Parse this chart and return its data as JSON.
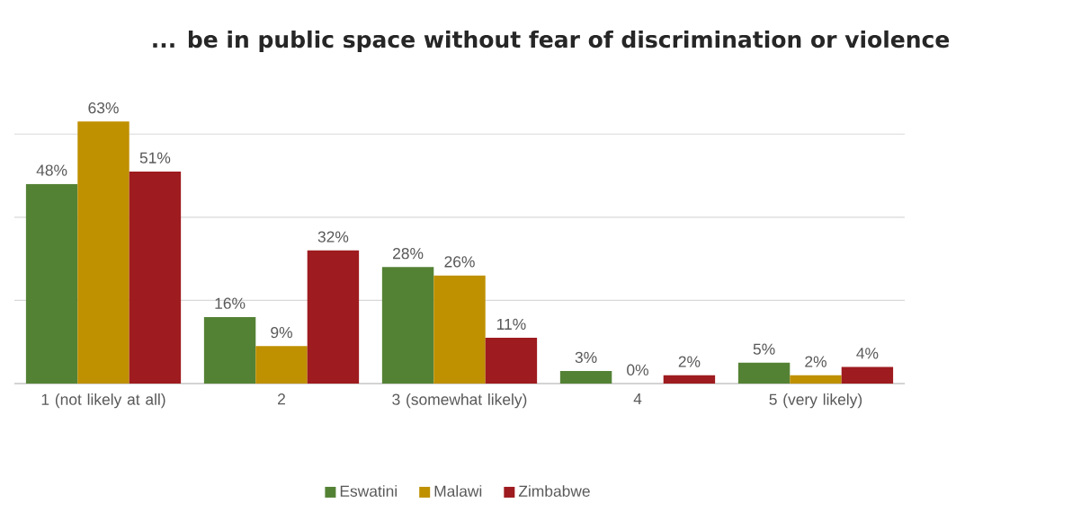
{
  "chart_data": {
    "type": "bar",
    "title": "... be in public space without fear of discrimination or violence",
    "categories": [
      "1 (not likely at all)",
      "2",
      "3 (somewhat likely)",
      "4",
      "5 (very likely)"
    ],
    "series": [
      {
        "name": "Eswatini",
        "color": "#548235",
        "values": [
          48,
          16,
          28,
          3,
          5
        ],
        "value_labels": [
          "48%",
          "16%",
          "28%",
          "3%",
          "5%"
        ]
      },
      {
        "name": "Malawi",
        "color": "#bf9000",
        "values": [
          63,
          9,
          26,
          0,
          2
        ],
        "value_labels": [
          "63%",
          "9%",
          "26%",
          "0%",
          "2%"
        ]
      },
      {
        "name": "Zimbabwe",
        "color": "#9e1b1f",
        "values": [
          51,
          32,
          11,
          2,
          4
        ],
        "value_labels": [
          "51%",
          "32%",
          "11%",
          "2%",
          "4%"
        ]
      }
    ],
    "grid": "y",
    "legend": "bottom",
    "tick_labels": "x"
  }
}
